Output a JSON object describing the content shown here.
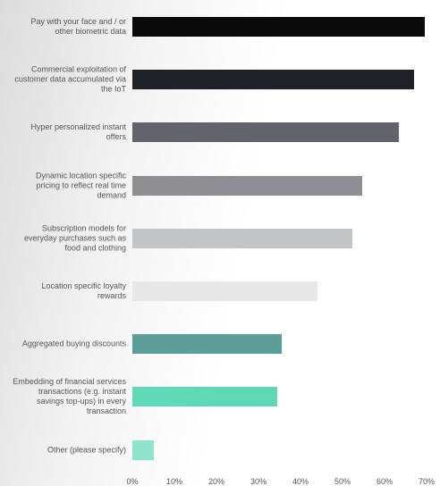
{
  "chart_data": {
    "type": "hbar",
    "categories": [
      "Pay with your face and / or other biometric data",
      "Commercial exploitation of customer data accumulated via the IoT",
      "Hyper personalized instant offers",
      "Dynamic location specific pricing to reflect real time demand",
      "Subscription models for everyday purchases such as food and clothing",
      "Location specific loyalty rewards",
      "Aggregated buying discounts",
      "Embedding of financial services transactions (e.g. instant savings top-ups) in every transaction",
      "Other (please specify)"
    ],
    "values": [
      69.5,
      67,
      63.4,
      54.7,
      52.3,
      44,
      35.5,
      34.5,
      5.1
    ],
    "colors": [
      "#0a0a0a",
      "#1f2128",
      "#62646b",
      "#8e8f93",
      "#c3c4c6",
      "#e8e8e8",
      "#5e9e9a",
      "#5fd8b6",
      "#8de6cc"
    ],
    "xlim": [
      0,
      70
    ],
    "xticks": [
      {
        "value": 0,
        "label": "0%"
      },
      {
        "value": 10,
        "label": "10%"
      },
      {
        "value": 20,
        "label": "20%"
      },
      {
        "value": 30,
        "label": "30%"
      },
      {
        "value": 40,
        "label": "40%"
      },
      {
        "value": 50,
        "label": "50%"
      },
      {
        "value": 60,
        "label": "60%"
      },
      {
        "value": 70,
        "label": "70%"
      }
    ],
    "grid": false
  }
}
